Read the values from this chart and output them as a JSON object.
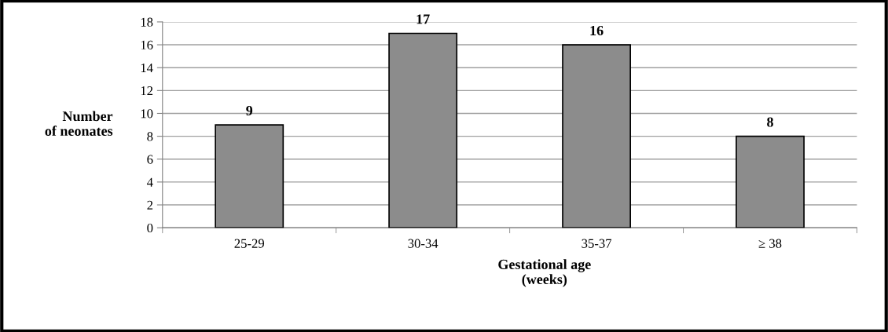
{
  "chart_data": {
    "type": "bar",
    "xlabel": "Gestational age\n(weeks)",
    "ylabel": "Number\nof neonates",
    "categories": [
      "25-29",
      "30-34",
      "35-37",
      "≥ 38"
    ],
    "values": [
      9,
      17,
      16,
      8
    ],
    "color": "#8c8c8c",
    "ylim": [
      0,
      18
    ],
    "yticks": [
      0,
      2,
      4,
      6,
      8,
      10,
      12,
      14,
      16,
      18
    ],
    "grid": "y",
    "data_labels": true
  }
}
